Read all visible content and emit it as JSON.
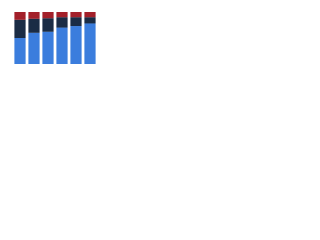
{
  "chart_data": {
    "type": "stacked_bar",
    "categories": [
      null,
      null,
      null,
      null,
      null,
      null
    ],
    "series": [
      {
        "color": "#3b7ddd",
        "values": [
          50,
          60,
          62,
          70,
          73,
          78
        ]
      },
      {
        "color": "#1a2c45",
        "values": [
          35,
          27,
          26,
          20,
          17,
          12
        ]
      },
      {
        "color": "#a3202a",
        "values": [
          15,
          13,
          12,
          10,
          10,
          10
        ]
      }
    ],
    "ylim": [
      0,
      100
    ]
  }
}
